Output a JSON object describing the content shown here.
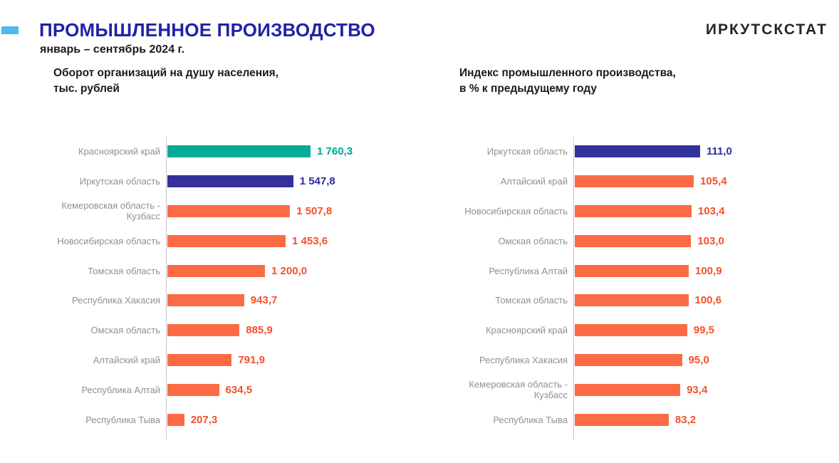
{
  "header": {
    "title": "ПРОМЫШЛЕННОЕ ПРОИЗВОДСТВО",
    "subtitle": "январь – сентябрь 2024 г.",
    "logo": "ИРКУТСКСТАТ"
  },
  "colors": {
    "title_blue": "#2122A8",
    "accent_dash": "#4FB8F0",
    "teal": "#04AB97",
    "navy": "#34309C",
    "orange": "#FC6B45",
    "value_orange": "#F4502B",
    "value_teal": "#00A193",
    "value_navy": "#2C2C9C",
    "label_gray": "#909090",
    "axis_gray": "#C8C8C8"
  },
  "chart_data": [
    {
      "type": "bar",
      "orientation": "horizontal",
      "title_line1": "Оборот организаций на душу населения,",
      "title_line2": "тыс. рублей",
      "legend": "none",
      "grid": "off",
      "categories": [
        "Красноярский край",
        "Иркутская область",
        "Кемеровская область -\nКузбасс",
        "Новосибирская область",
        "Томская область",
        "Республика Хакасия",
        "Омская область",
        "Алтайский край",
        "Республика Алтай",
        "Республика Тыва"
      ],
      "values": [
        1760.3,
        1547.8,
        1507.8,
        1453.6,
        1200.0,
        943.7,
        885.9,
        791.9,
        634.5,
        207.3
      ],
      "value_labels": [
        "1 760,3",
        "1 547,8",
        "1 507,8",
        "1 453,6",
        "1 200,0",
        "943,7",
        "885,9",
        "791,9",
        "634,5",
        "207,3"
      ],
      "bar_colors": [
        "#04AB97",
        "#34309C",
        "#FC6B45",
        "#FC6B45",
        "#FC6B45",
        "#FC6B45",
        "#FC6B45",
        "#FC6B45",
        "#FC6B45",
        "#FC6B45"
      ],
      "value_colors": [
        "#00A193",
        "#2C2C9C",
        "#F4502B",
        "#F4502B",
        "#F4502B",
        "#F4502B",
        "#F4502B",
        "#F4502B",
        "#F4502B",
        "#F4502B"
      ]
    },
    {
      "type": "bar",
      "orientation": "horizontal",
      "title_line1": "Индекс промышленного производства,",
      "title_line2": "в % к предыдущему году",
      "legend": "none",
      "grid": "off",
      "categories": [
        "Иркутская область",
        "Алтайский край",
        "Новосибирская область",
        "Омская область",
        "Республика Алтай",
        "Томская область",
        "Красноярский край",
        "Республика Хакасия",
        "Кемеровская область -\nКузбасс",
        "Республика Тыва"
      ],
      "values": [
        111.0,
        105.4,
        103.4,
        103.0,
        100.9,
        100.6,
        99.5,
        95.0,
        93.4,
        83.2
      ],
      "value_labels": [
        "111,0",
        "105,4",
        "103,4",
        "103,0",
        "100,9",
        "100,6",
        "99,5",
        "95,0",
        "93,4",
        "83,2"
      ],
      "bar_colors": [
        "#34309C",
        "#FC6B45",
        "#FC6B45",
        "#FC6B45",
        "#FC6B45",
        "#FC6B45",
        "#FC6B45",
        "#FC6B45",
        "#FC6B45",
        "#FC6B45"
      ],
      "value_colors": [
        "#2C2C9C",
        "#F4502B",
        "#F4502B",
        "#F4502B",
        "#F4502B",
        "#F4502B",
        "#F4502B",
        "#F4502B",
        "#F4502B",
        "#F4502B"
      ]
    }
  ]
}
